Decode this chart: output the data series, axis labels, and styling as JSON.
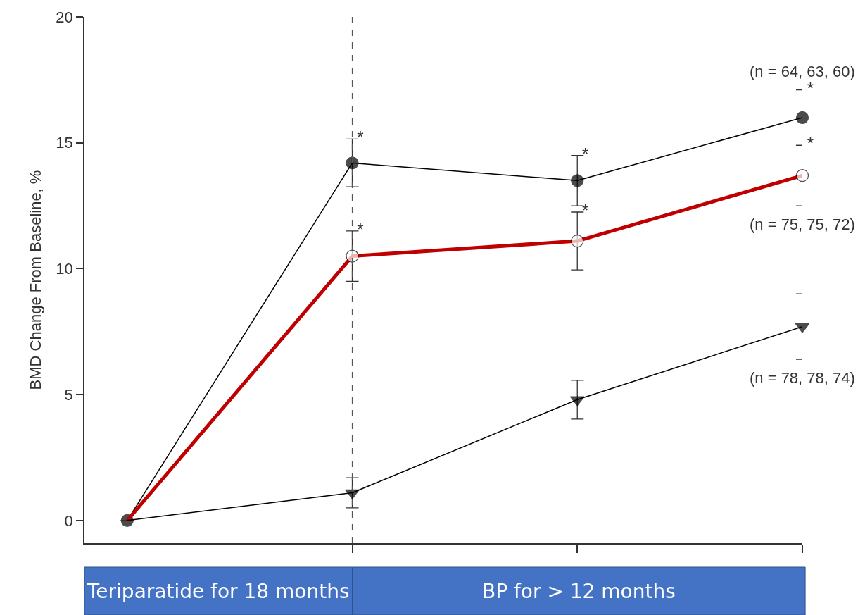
{
  "chart_data": {
    "type": "line",
    "ylabel": "BMD Change From Baseline, %",
    "categories": [
      null,
      null,
      null,
      null
    ],
    "ylim": [
      -0.9,
      20
    ],
    "yticks": [
      0,
      5,
      10,
      15,
      20
    ],
    "tick_labels": "y",
    "line_style": "solid",
    "series": [
      {
        "color": "#000000",
        "marker": "circle",
        "values": [
          0,
          14.2,
          13.5,
          16.0
        ],
        "errors": [
          null,
          0.95,
          1.0,
          1.1
        ],
        "value_labels": [
          null,
          "*",
          "*",
          "*"
        ]
      },
      {
        "color": "#c00000",
        "marker": "circle",
        "colors": [
          "#ffffff",
          "#ffffff",
          "#ffffff",
          "#ffffff"
        ],
        "values": [
          0,
          10.5,
          11.1,
          13.7
        ],
        "errors": [
          null,
          1.0,
          1.15,
          1.2
        ],
        "value_labels": [
          null,
          "*",
          "*",
          "*"
        ]
      },
      {
        "color": "#000000",
        "marker": "triangle",
        "values": [
          0,
          1.1,
          4.8,
          7.7
        ],
        "errors": [
          null,
          0.6,
          0.77,
          1.3
        ]
      }
    ],
    "annotations": [
      "(n = 64, 63, 60)",
      "(n = 75, 75, 72)",
      "(n = 78, 78, 74)",
      "Teriparatide for 18 months",
      "BP for > 12 months"
    ]
  }
}
